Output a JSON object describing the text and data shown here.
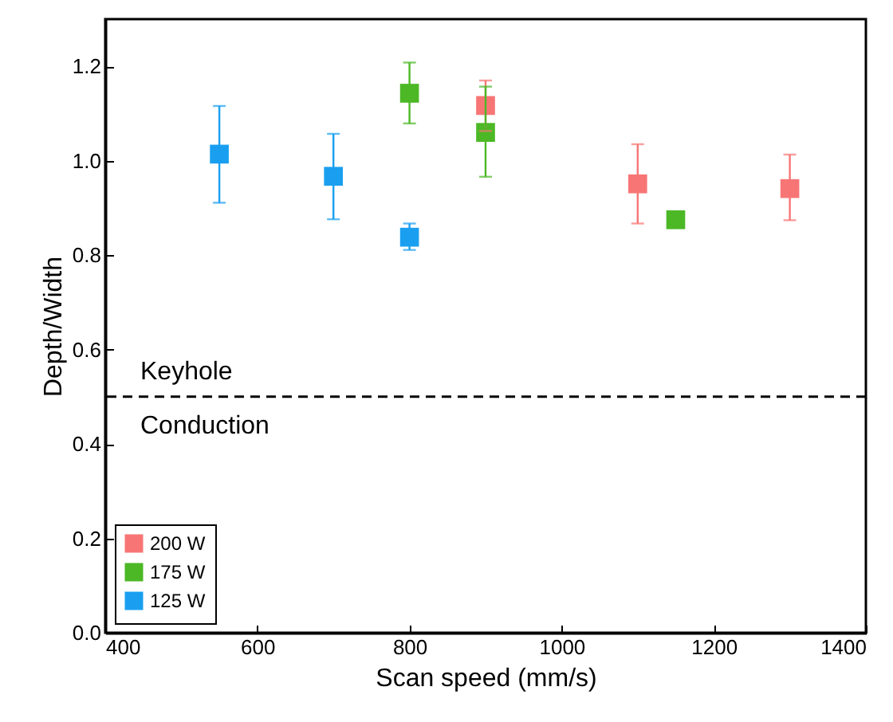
{
  "chart_data": {
    "type": "scatter",
    "xlabel": "Scan speed (mm/s)",
    "ylabel": "Depth/Width",
    "xlim": [
      400,
      1400
    ],
    "xticks": [
      400,
      600,
      800,
      1000,
      1200,
      1400
    ],
    "ylim": [
      0,
      1.3
    ],
    "yticks": [
      {
        "value": 0,
        "label": "0.0"
      },
      {
        "value": 0.2,
        "label": "0.2"
      },
      {
        "value": 0.4,
        "label": "0.4"
      },
      {
        "value": 0.6,
        "label": "0.6"
      },
      {
        "value": 0.8,
        "label": "0.8"
      },
      {
        "value": 1.0,
        "label": "1.0"
      },
      {
        "value": 1.2,
        "label": "1.2"
      }
    ],
    "marker": "square",
    "legend": "bottom left",
    "grid": false,
    "series": [
      {
        "name": "200 W",
        "color": "#f87575",
        "x": [
          900,
          1100,
          1300
        ],
        "values": [
          1.117,
          0.951,
          0.941
        ],
        "errors": [
          [
            1.063,
            1.17
          ],
          [
            0.867,
            1.035
          ],
          [
            0.874,
            1.013
          ]
        ]
      },
      {
        "name": "175 W",
        "color": "#4cb826",
        "x": [
          800,
          900,
          1150
        ],
        "values": [
          1.143,
          1.06,
          0.875
        ],
        "errors": [
          [
            1.079,
            1.208
          ],
          [
            0.966,
            1.157
          ],
          null
        ]
      },
      {
        "name": "125 W",
        "color": "#1a9ff0",
        "x": [
          550,
          700,
          800
        ],
        "values": [
          1.014,
          0.967,
          0.838
        ],
        "errors": [
          [
            0.911,
            1.116
          ],
          [
            0.876,
            1.057
          ],
          [
            0.811,
            0.867
          ]
        ]
      }
    ],
    "ref_lines": [
      {
        "axis": "y",
        "value": 0.5,
        "color": "#000000",
        "line_style": "dashed"
      }
    ],
    "annotations": [
      "Keyhole",
      "Conduction"
    ]
  }
}
